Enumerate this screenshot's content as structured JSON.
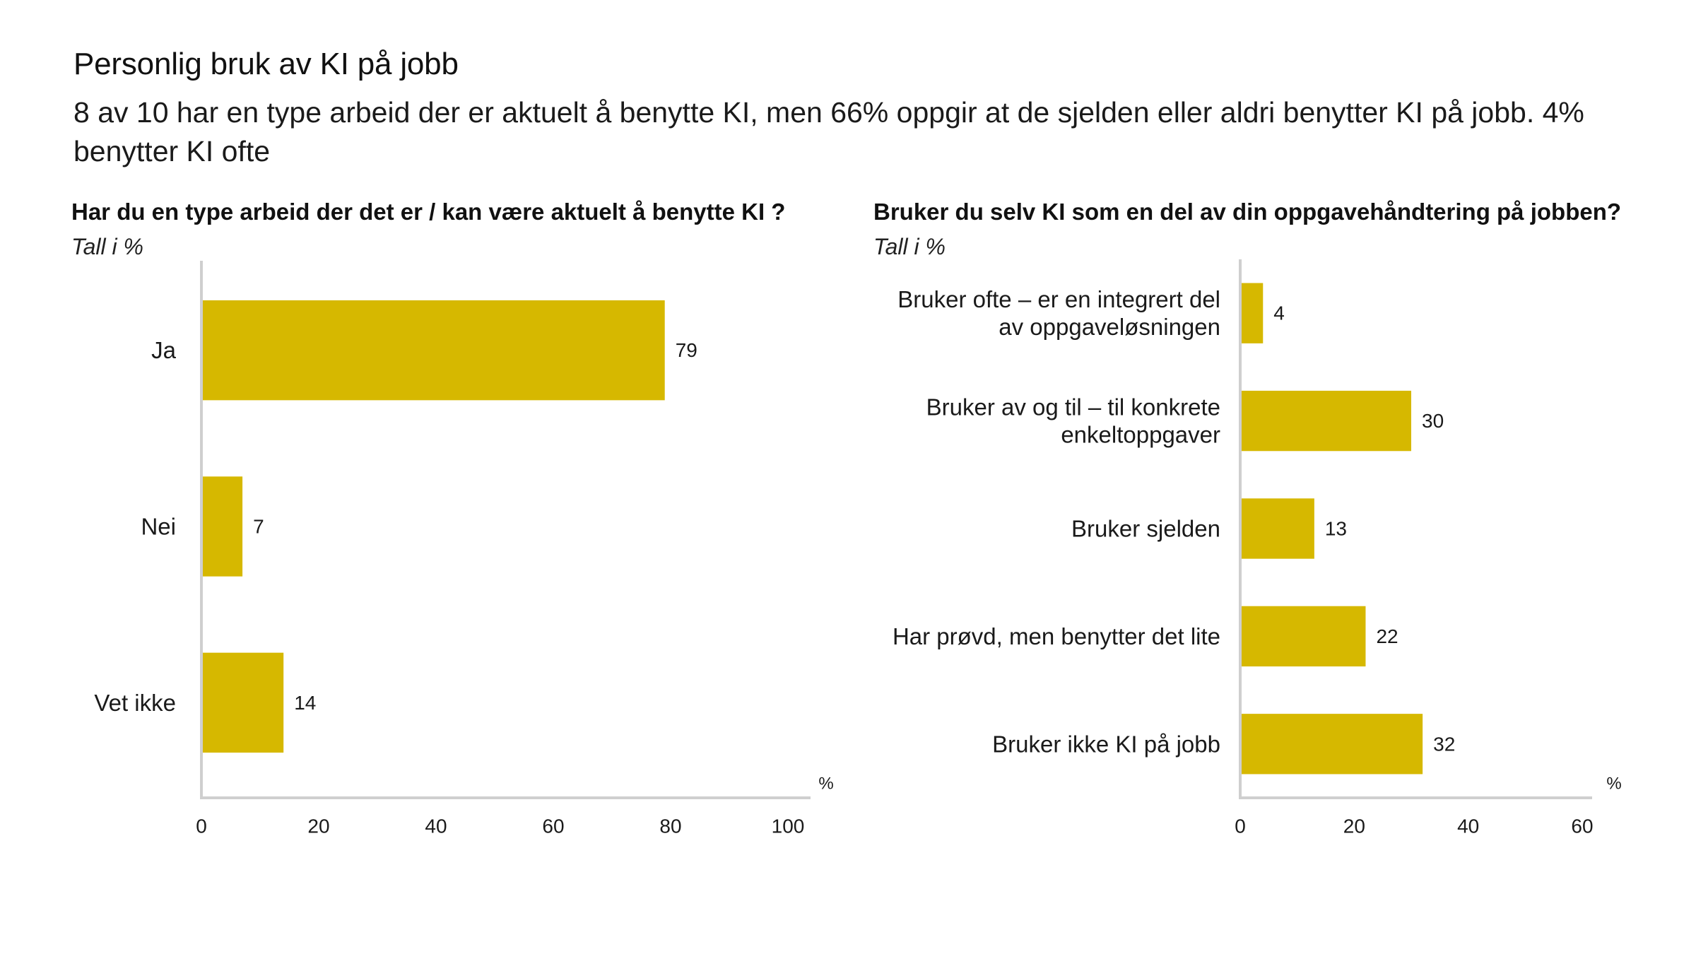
{
  "title": "Personlig bruk av KI på jobb",
  "subtitle": "8 av 10 har en type arbeid der er aktuelt å benytte KI, men 66% oppgir at de sjelden eller aldri benytter KI på jobb. 4% benytter KI ofte",
  "colors": {
    "bar": "#d6b800",
    "axis": "#cfcfcf"
  },
  "chart_data": [
    {
      "type": "bar",
      "orientation": "horizontal",
      "title": "Har du en type arbeid der det er / kan være aktuelt å benytte KI ?",
      "subtitle": "Tall i %",
      "xlabel": "%",
      "categories": [
        "Ja",
        "Nei",
        "Vet ikke"
      ],
      "values": [
        79,
        7,
        14
      ],
      "xlim": [
        0,
        100
      ],
      "xticks": [
        0,
        20,
        40,
        60,
        80,
        100
      ]
    },
    {
      "type": "bar",
      "orientation": "horizontal",
      "title": "Bruker du selv KI som en del av din oppgavehåndtering på jobben?",
      "subtitle": "Tall i %",
      "xlabel": "%",
      "categories": [
        "Bruker ofte – er en integrert del av oppgaveløsningen",
        "Bruker av og til – til konkrete enkeltoppgaver",
        "Bruker sjelden",
        "Har prøvd, men benytter det lite",
        "Bruker ikke KI på jobb"
      ],
      "category_lines": [
        [
          "Bruker ofte – er en integrert del",
          "av oppgaveløsningen"
        ],
        [
          "Bruker av og til – til konkrete",
          "enkeltoppgaver"
        ],
        [
          "Bruker sjelden"
        ],
        [
          "Har prøvd, men benytter det lite"
        ],
        [
          "Bruker ikke KI på jobb"
        ]
      ],
      "values": [
        4,
        30,
        13,
        22,
        32
      ],
      "xlim": [
        0,
        60
      ],
      "xticks": [
        0,
        20,
        40,
        60
      ]
    }
  ]
}
